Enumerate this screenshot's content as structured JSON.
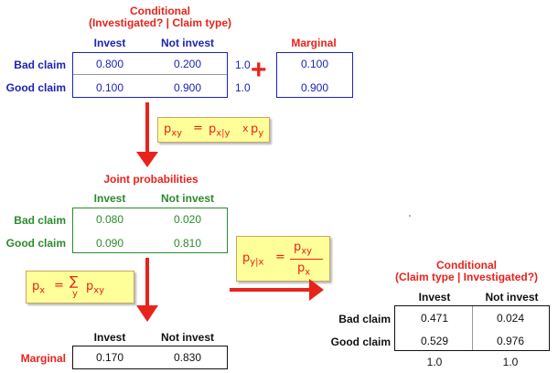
{
  "colors": {
    "red": "#e8231b",
    "blue": "#1b24b3",
    "green": "#2c8a2c",
    "formula_bg": "#ffff99"
  },
  "conditional_xy": {
    "title1": "Conditional",
    "title2": "(Investigated? | Claim type)",
    "col_headers": [
      "Invest",
      "Not invest"
    ],
    "rows": [
      {
        "label": "Bad claim",
        "values": [
          "0.800",
          "0.200"
        ],
        "sum": "1.0"
      },
      {
        "label": "Good claim",
        "values": [
          "0.100",
          "0.900"
        ],
        "sum": "1.0"
      }
    ]
  },
  "plus_symbol": "+",
  "marginal_y": {
    "title": "Marginal",
    "values": [
      "0.100",
      "0.900"
    ]
  },
  "joint": {
    "title": "Joint probabilities",
    "col_headers": [
      "Invest",
      "Not invest"
    ],
    "rows": [
      {
        "label": "Bad claim",
        "values": [
          "0.080",
          "0.020"
        ]
      },
      {
        "label": "Good claim",
        "values": [
          "0.090",
          "0.810"
        ]
      }
    ]
  },
  "marginal_x": {
    "label": "Marginal",
    "col_headers": [
      "Invest",
      "Not invest"
    ],
    "values": [
      "0.170",
      "0.830"
    ]
  },
  "conditional_yx": {
    "title1": "Conditional",
    "title2": "(Claim type | Investigated?)",
    "col_headers": [
      "Invest",
      "Not invest"
    ],
    "rows": [
      {
        "label": "Bad claim",
        "values": [
          "0.471",
          "0.024"
        ]
      },
      {
        "label": "Good claim",
        "values": [
          "0.529",
          "0.976"
        ]
      }
    ],
    "sums": [
      "1.0",
      "1.0"
    ]
  },
  "formulas": {
    "joint": {
      "lhs": "p",
      "lhs_sub": "xy",
      "eq": "=",
      "t1": "p",
      "t1_sub": "x|y",
      "op": "x",
      "t2": "p",
      "t2_sub": "y"
    },
    "marginal": {
      "lhs": "p",
      "lhs_sub": "x",
      "eq": "=",
      "sum": "∑",
      "sum_sub": "y",
      "t": "p",
      "t_sub": "xy"
    },
    "bayes": {
      "lhs": "p",
      "lhs_sub": "y|x",
      "eq": "=",
      "num": "p",
      "num_sub": "xy",
      "den": "p",
      "den_sub": "x"
    }
  }
}
